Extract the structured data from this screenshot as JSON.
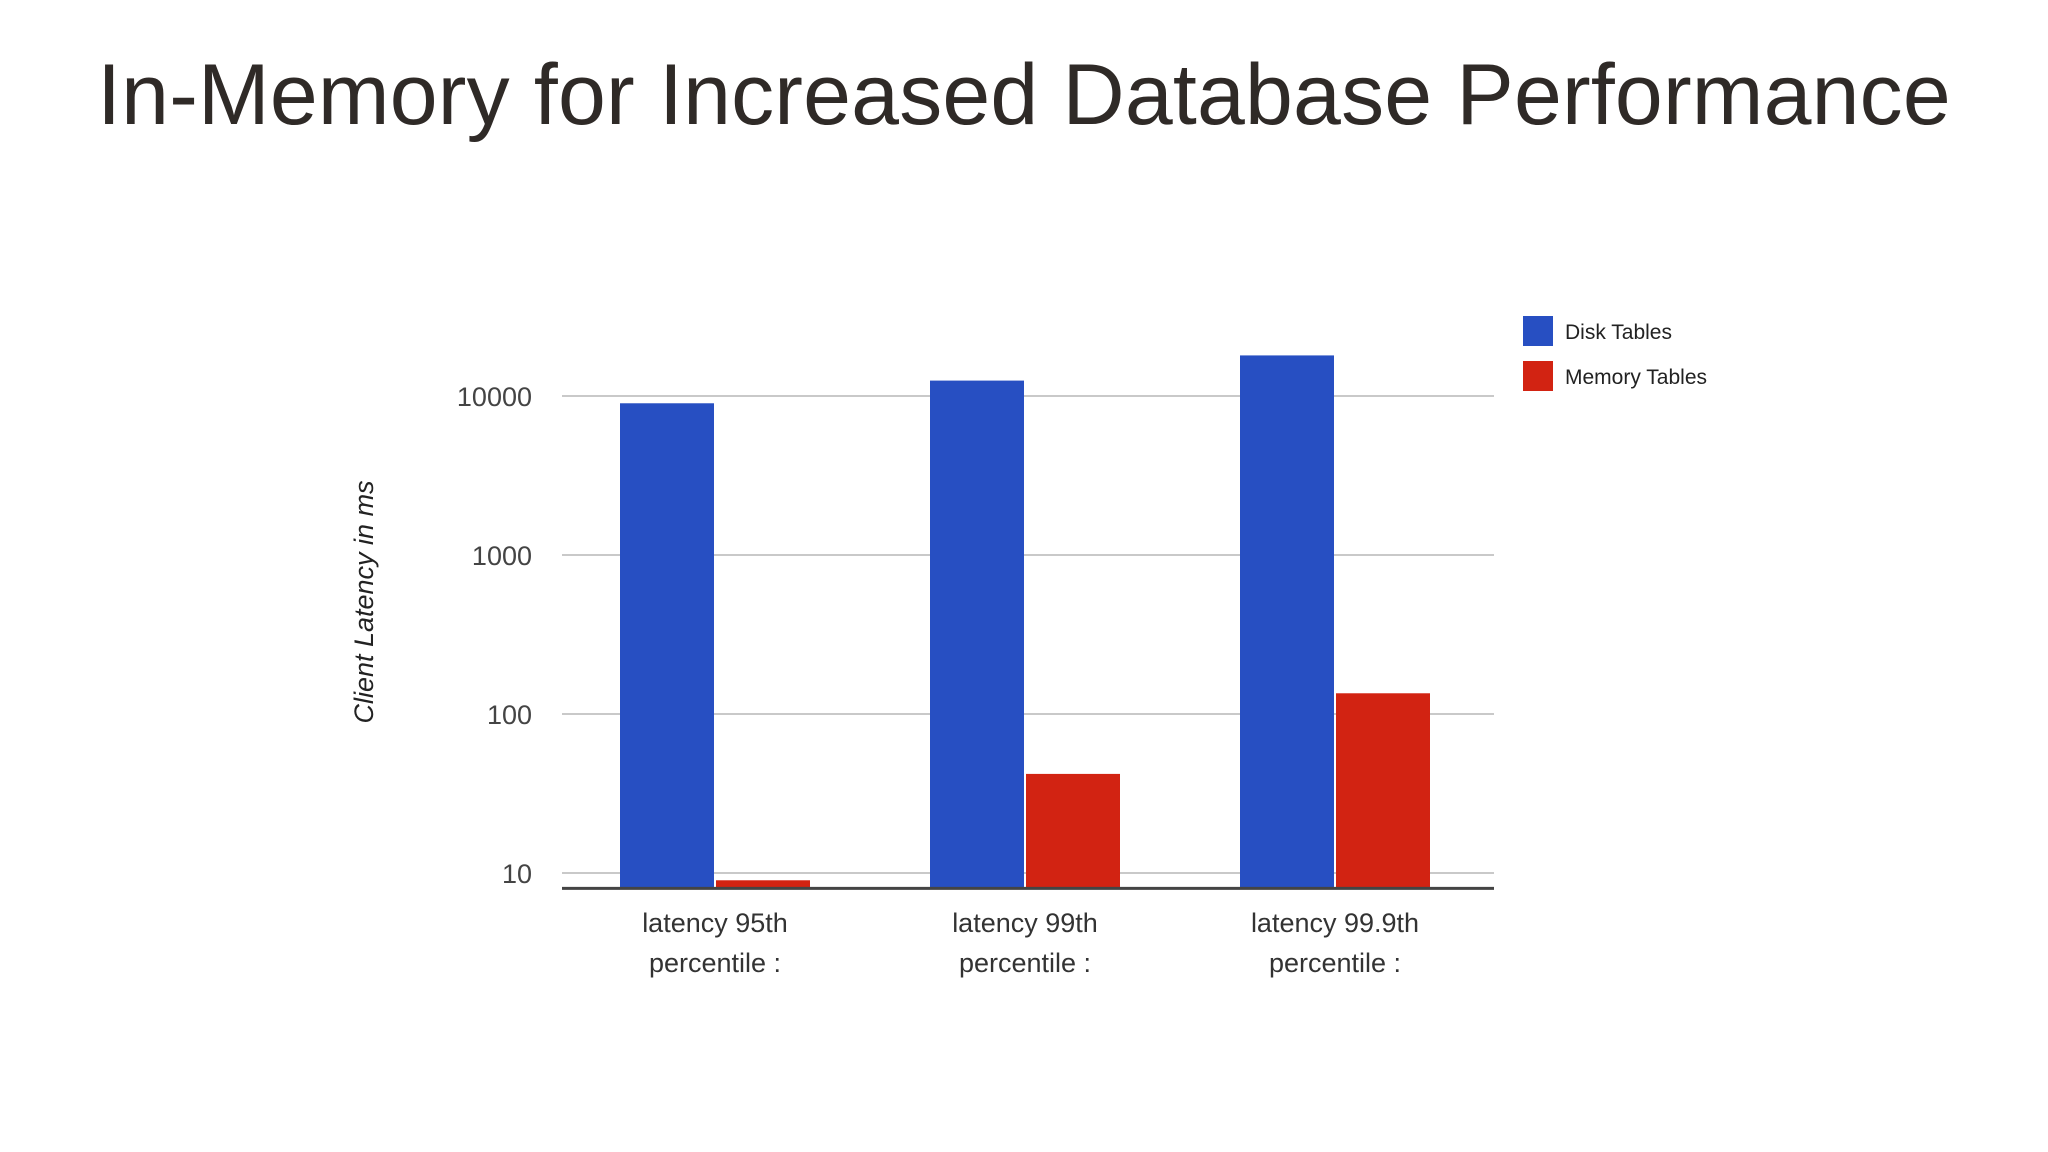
{
  "slide": {
    "title": "In-Memory for Increased Database Performance"
  },
  "chart_data": {
    "type": "bar",
    "categories": [
      [
        "latency 95th",
        "percentile :"
      ],
      [
        "latency 99th",
        "percentile :"
      ],
      [
        "latency 99.9th",
        "percentile :"
      ]
    ],
    "series": [
      {
        "name": "Disk Tables",
        "color": "#274fc2",
        "values": [
          9000,
          12500,
          18000
        ]
      },
      {
        "name": "Memory Tables",
        "color": "#d22312",
        "values": [
          9,
          42,
          135
        ]
      }
    ],
    "ylabel": "Client Latency in ms",
    "xlabel": "",
    "yscale": "log",
    "ylim": [
      8,
      20000
    ],
    "yticks": [
      10,
      100,
      1000,
      10000
    ],
    "ytick_labels": [
      "10",
      "100",
      "1000",
      "10000"
    ],
    "grid": true,
    "legend_position": "top-right"
  }
}
